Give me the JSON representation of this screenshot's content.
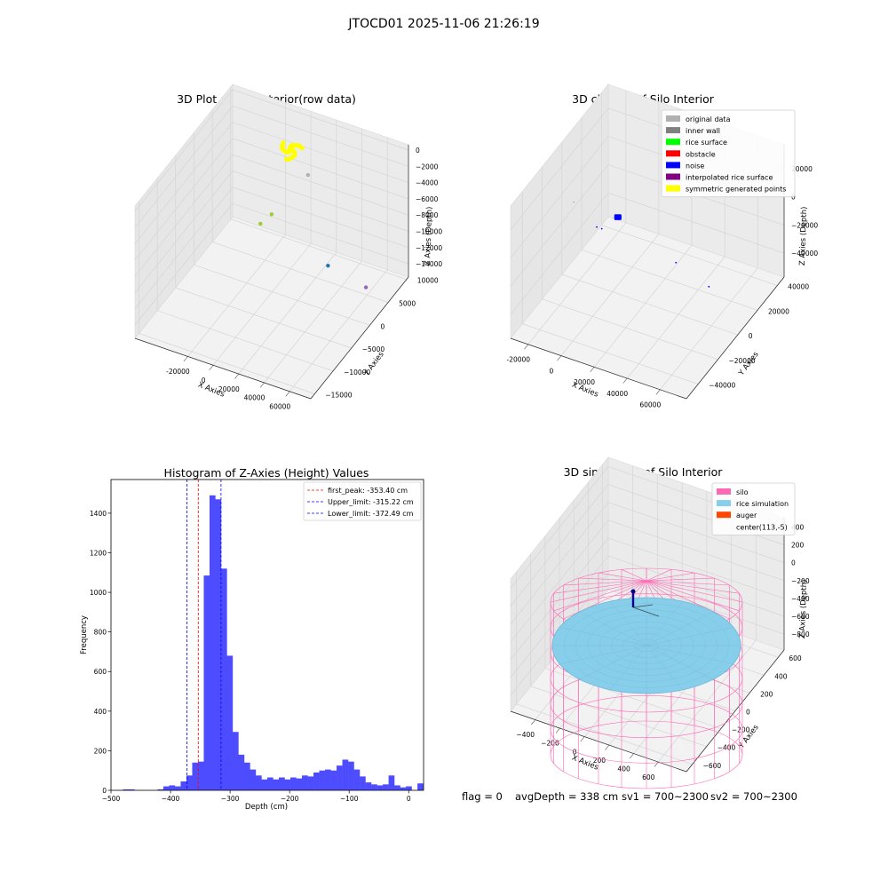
{
  "suptitle": "JTOCD01 2025-11-06 21:26:19",
  "footer": {
    "flag": "flag = 0",
    "avg": "avgDepth = 338 cm",
    "sv1": "sv1 = 700~2300",
    "sv2": "sv2 = 700~2300"
  },
  "colors": {
    "original_data": "#b0b0b0",
    "inner_wall": "#808080",
    "rice_surface": "#00ff00",
    "obstacle": "#ff0000",
    "noise": "#0000ff",
    "interpolated": "#800080",
    "symmetric": "#ffff00",
    "silo": "#ff69b4",
    "rice_sim": "#87ceeb",
    "auger": "#ff4500",
    "hist_bar": "#4d4dff"
  },
  "chart_data": [
    {
      "type": "scatter",
      "title": "3D Plot of Silo Interior(row data)",
      "xlabel": "X Axies",
      "ylabel": "Y Axies",
      "zlabel": "Z Axies (Depth)",
      "x_ticks": [
        "-20000",
        "0",
        "20000",
        "40000",
        "60000"
      ],
      "y_ticks": [
        "10000",
        "5000",
        "0",
        "−5000",
        "−10000",
        "−15000"
      ],
      "z_ticks": [
        "0",
        "−2000",
        "−4000",
        "−6000",
        "−8000",
        "−10000",
        "−12000",
        "−14000"
      ],
      "points": [
        {
          "x": 3000,
          "y": 4000,
          "z": -300,
          "color": "#ffff00",
          "cluster": true
        },
        {
          "x": 5000,
          "y": 8000,
          "z": -5500,
          "color": "#b0b0b0"
        },
        {
          "x": -15000,
          "y": 2000,
          "z": -9200,
          "color": "#9acd32"
        },
        {
          "x": -12000,
          "y": 4000,
          "z": -9000,
          "color": "#9acd32"
        },
        {
          "x": 38000,
          "y": 2000,
          "z": -11500,
          "color": "#1f77b4"
        },
        {
          "x": 62000,
          "y": 4000,
          "z": -14000,
          "color": "#9467bd"
        }
      ]
    },
    {
      "type": "scatter",
      "title": "3D classify of Silo Interior",
      "xlabel": "X Axies",
      "ylabel": "Y Axies",
      "zlabel": "Z Axies (Depth)",
      "x_ticks": [
        "-20000",
        "0",
        "20000",
        "40000",
        "60000"
      ],
      "y_ticks": [
        "40000",
        "20000",
        "0",
        "−20000",
        "−40000"
      ],
      "z_ticks": [
        "20000",
        "0",
        "−20000",
        "−40000"
      ],
      "legend": [
        "original data",
        "inner wall",
        "rice surface",
        "obstacle",
        "noise",
        "interpolated rice surface",
        "symmetric generated points"
      ],
      "legend_position": "top-right",
      "points": [
        {
          "x": 5000,
          "y": 0,
          "z": 0,
          "color": "#0000ff",
          "cluster": true
        },
        {
          "x": -22000,
          "y": 0,
          "z": 0,
          "color": "#b0b0b0"
        },
        {
          "x": -8000,
          "y": 0,
          "z": -12000,
          "color": "#0000ff"
        },
        {
          "x": -5000,
          "y": 0,
          "z": -12000,
          "color": "#0000ff"
        },
        {
          "x": 40000,
          "y": 0,
          "z": -18000,
          "color": "#0000ff"
        },
        {
          "x": 60000,
          "y": 0,
          "z": -27000,
          "color": "#0000ff"
        }
      ]
    },
    {
      "type": "bar",
      "title": "Histogram of Z-Axies (Height) Values",
      "xlabel": "Depth (cm)",
      "ylabel": "Frequency",
      "xlim": [
        -500,
        25
      ],
      "ylim": [
        0,
        1570
      ],
      "x_ticks": [
        -500,
        -400,
        -300,
        -200,
        -100,
        0
      ],
      "y_ticks": [
        0,
        200,
        400,
        600,
        800,
        1000,
        1200,
        1400
      ],
      "bin_start": -480,
      "bin_width": 9.7,
      "values": [
        5,
        5,
        0,
        0,
        0,
        0,
        5,
        20,
        25,
        20,
        45,
        75,
        140,
        145,
        1085,
        1490,
        1470,
        1120,
        680,
        295,
        180,
        140,
        105,
        75,
        55,
        65,
        55,
        65,
        55,
        65,
        60,
        75,
        70,
        90,
        100,
        105,
        100,
        125,
        155,
        145,
        105,
        70,
        40,
        30,
        25,
        30,
        75,
        25,
        15,
        20,
        0,
        35
      ],
      "vlines": [
        {
          "label": "first_peak: -353.40 cm",
          "value": -353.4,
          "color": "#ff0000"
        },
        {
          "label": "Upper_limit: -315.22 cm",
          "value": -315.22,
          "color": "#0000ff"
        },
        {
          "label": "Lower_limit: -372.49 cm",
          "value": -372.49,
          "color": "#0000ff"
        }
      ],
      "legend_position": "top-right"
    },
    {
      "type": "scatter",
      "title": "3D simulation of Silo Interior",
      "xlabel": "X Axies",
      "ylabel": "Y Axies",
      "zlabel": "Z Axies (Depth)",
      "x_ticks": [
        "−400",
        "−200",
        "0",
        "200",
        "400",
        "600"
      ],
      "y_ticks": [
        "600",
        "400",
        "200",
        "0",
        "−200",
        "−400",
        "−600"
      ],
      "z_ticks": [
        "400",
        "200",
        "0",
        "−200",
        "−400",
        "−600",
        "−800"
      ],
      "legend": [
        "silo",
        "rice simulation",
        "auger",
        "center(113,-5)"
      ],
      "legend_position": "top-right"
    }
  ]
}
